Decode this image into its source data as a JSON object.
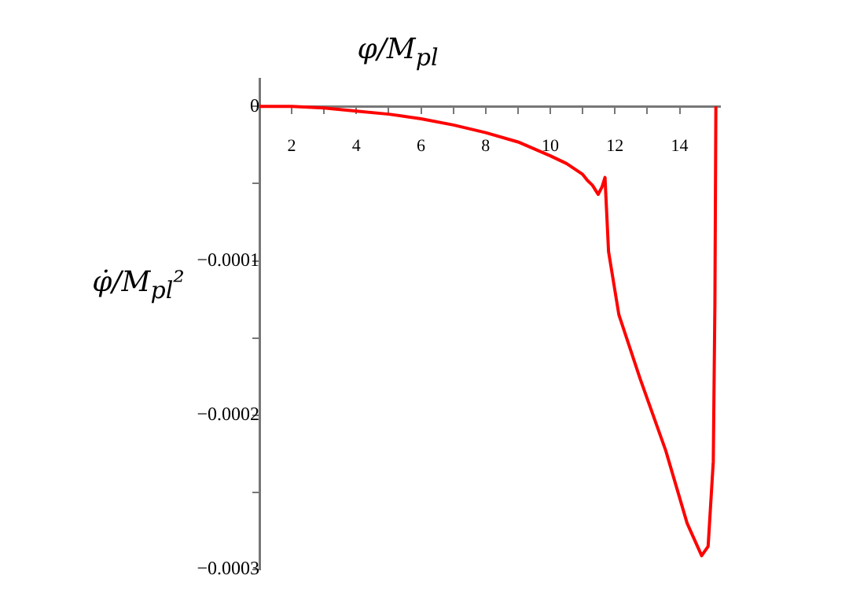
{
  "chart_data": {
    "type": "line",
    "xlabel": "φ/M$_{pl}$",
    "ylabel": "φ̇/M$_{pl}$²",
    "x": [
      1,
      2,
      3,
      4,
      5,
      6,
      7,
      8,
      9,
      10,
      10.5,
      11,
      11.15,
      11.3,
      11.48,
      11.6,
      11.69,
      11.8,
      12.12,
      12.77,
      13.57,
      14.23,
      14.68,
      14.88,
      15.04,
      15.09,
      15.12
    ],
    "series": [
      {
        "color": "#ff0000",
        "values": [
          0,
          0,
          -1e-06,
          -3e-06,
          -5e-06,
          -8e-06,
          -1.2e-05,
          -1.7e-05,
          -2.3e-05,
          -3.2e-05,
          -3.7e-05,
          -4.4e-05,
          -4.8e-05,
          -5.1e-05,
          -5.7e-05,
          -5.2e-05,
          -4.6e-05,
          -9.4e-05,
          -0.000135,
          -0.000176,
          -0.000223,
          -0.00027,
          -0.000291,
          -0.000285,
          -0.00023,
          -0.000128,
          0
        ]
      }
    ],
    "xlim": [
      1,
      15.25
    ],
    "ylim": [
      -0.0003,
      1.8e-05
    ],
    "xticks": [
      2,
      {
        "value": 3,
        "label": null
      },
      4,
      {
        "value": 5,
        "label": null
      },
      6,
      {
        "value": 7,
        "label": null
      },
      8,
      {
        "value": 9,
        "label": null
      },
      10,
      {
        "value": 11,
        "label": null
      },
      12,
      {
        "value": 13,
        "label": null
      },
      14
    ],
    "yticks": [
      {
        "value": -0.0003,
        "label": "−0.0003"
      },
      {
        "value": -0.00025,
        "label": null
      },
      {
        "value": -0.0002,
        "label": "−0.0002"
      },
      {
        "value": -0.00015,
        "label": null
      },
      {
        "value": -0.0001,
        "label": "−0.0001"
      },
      {
        "value": -5e-05,
        "label": null
      },
      0
    ],
    "grid": false,
    "legend": false,
    "line_style": "solid",
    "marker": "none"
  }
}
